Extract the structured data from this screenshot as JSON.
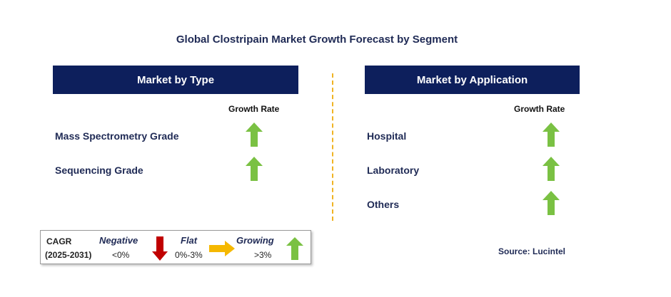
{
  "title": "Global Clostripain Market Growth Forecast by Segment",
  "type_panel": {
    "header": "Market by Type",
    "growth_rate_label": "Growth Rate",
    "items": [
      {
        "label": "Mass Spectrometry Grade",
        "trend": "growing"
      },
      {
        "label": "Sequencing Grade",
        "trend": "growing"
      }
    ]
  },
  "application_panel": {
    "header": "Market by Application",
    "growth_rate_label": "Growth Rate",
    "items": [
      {
        "label": "Hospital",
        "trend": "growing"
      },
      {
        "label": "Laboratory",
        "trend": "growing"
      },
      {
        "label": "Others",
        "trend": "growing"
      }
    ]
  },
  "legend": {
    "cagr_label": "CAGR",
    "period": "(2025-2031)",
    "negative": {
      "label": "Negative",
      "range": "<0%",
      "color": "#c00000",
      "icon": "arrow-down-icon"
    },
    "flat": {
      "label": "Flat",
      "range": "0%-3%",
      "color": "#f5b800",
      "icon": "arrow-right-icon"
    },
    "growing": {
      "label": "Growing",
      "range": ">3%",
      "color": "#7ac143",
      "icon": "arrow-up-icon"
    }
  },
  "source": "Source: Lucintel",
  "colors": {
    "header_bg": "#0d1f5c",
    "divider": "#f0b323",
    "growing": "#7ac143"
  }
}
